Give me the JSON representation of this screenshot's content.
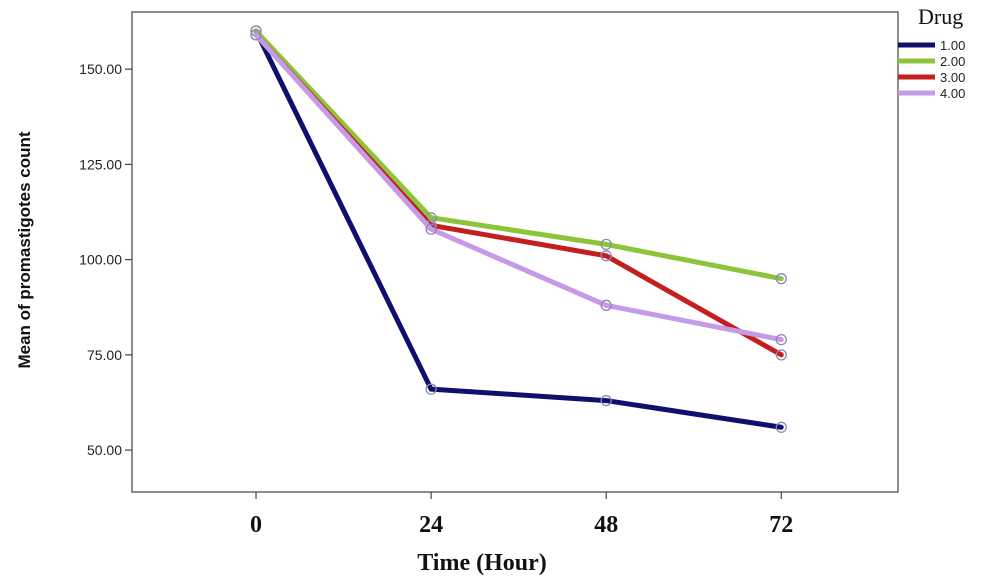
{
  "chart_data": {
    "type": "line",
    "xlabel": "Time (Hour)",
    "ylabel": "Mean of promastigotes count",
    "x": [
      0,
      24,
      48,
      72
    ],
    "x_tick_labels": [
      "0",
      "24",
      "48",
      "72"
    ],
    "y_ticks": [
      50,
      75,
      100,
      125,
      150
    ],
    "y_tick_labels": [
      "50.00",
      "75.00",
      "100.00",
      "125.00",
      "150.00"
    ],
    "ylim": [
      39,
      165
    ],
    "xlim": [
      -17,
      88
    ],
    "grid": false,
    "legend": {
      "title": "Drug",
      "placement": "right-top"
    },
    "series": [
      {
        "name": "1.00",
        "color": "#0f0f6e",
        "values": [
          160,
          66,
          63,
          56
        ]
      },
      {
        "name": "2.00",
        "color": "#8cc43a",
        "values": [
          160,
          111,
          104,
          95
        ]
      },
      {
        "name": "3.00",
        "color": "#c41e1e",
        "values": [
          159,
          109,
          101,
          75
        ]
      },
      {
        "name": "4.00",
        "color": "#c79ae8",
        "values": [
          159,
          108,
          88,
          79
        ]
      }
    ]
  }
}
